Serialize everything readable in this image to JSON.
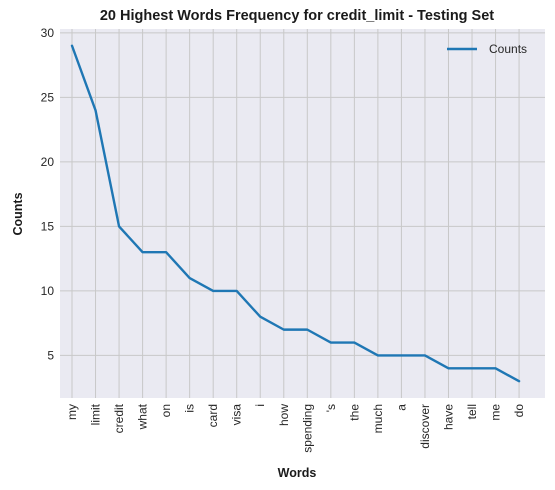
{
  "chart_data": {
    "type": "line",
    "title": "20 Highest Words Frequency for credit_limit - Testing Set",
    "xlabel": "Words",
    "ylabel": "Counts",
    "categories": [
      "my",
      "limit",
      "credit",
      "what",
      "on",
      "is",
      "card",
      "visa",
      "i",
      "how",
      "spending",
      "'s",
      "the",
      "much",
      "a",
      "discover",
      "have",
      "tell",
      "me",
      "do"
    ],
    "series": [
      {
        "name": "Counts",
        "values": [
          29,
          24,
          15,
          13,
          13,
          11,
          10,
          10,
          8,
          7,
          7,
          6,
          6,
          5,
          5,
          5,
          4,
          4,
          4,
          3
        ]
      }
    ],
    "ylim": [
      1.7,
      30.3
    ],
    "yticks": [
      5,
      10,
      15,
      20,
      25,
      30
    ],
    "grid": true,
    "legend_position": "top-right",
    "colors": {
      "line": "#1f77b4",
      "plot_bg": "#eaeaf2",
      "grid": "#c8c8c8"
    }
  }
}
